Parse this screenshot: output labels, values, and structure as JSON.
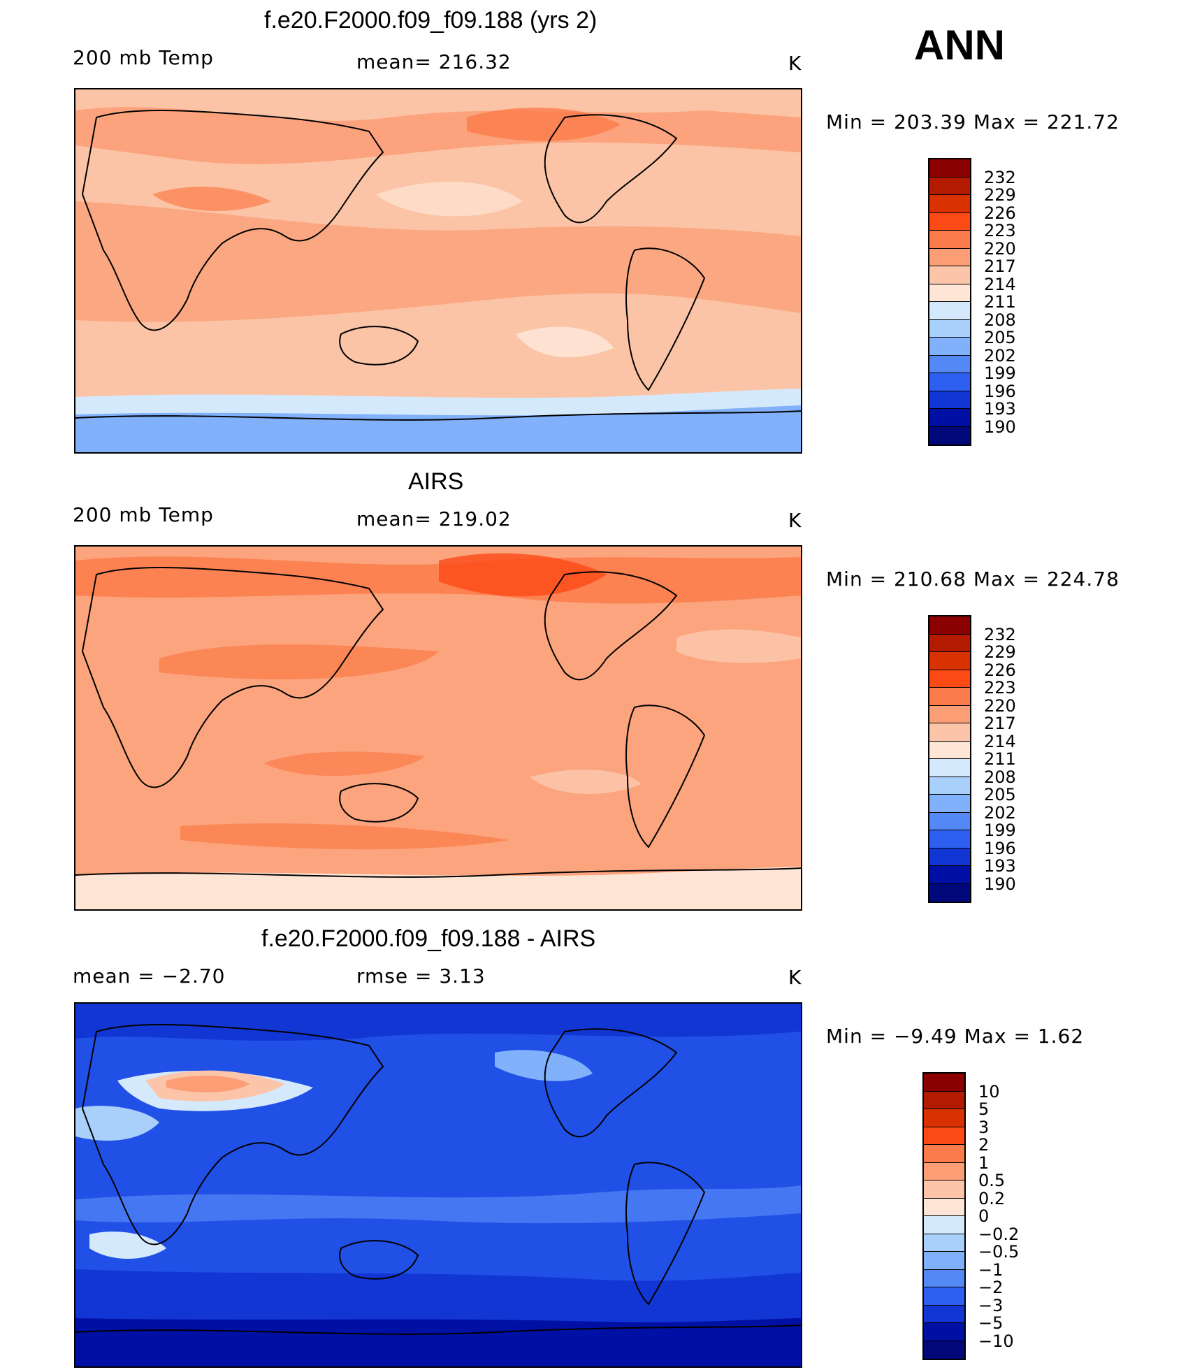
{
  "season": "ANN",
  "panels": [
    {
      "title": "f.e20.F2000.f09_f09.188 (yrs 2)",
      "left_stat": "200 mb Temp",
      "center_stat": "mean=  216.32",
      "units": "K",
      "minmax": "Min  =  203.39  Max  =  221.72",
      "colorbar_labels": [
        "232",
        "229",
        "226",
        "223",
        "220",
        "217",
        "214",
        "211",
        "208",
        "205",
        "202",
        "199",
        "196",
        "193",
        "190"
      ],
      "background_color": "#fbc4a6",
      "colors": [
        "#8b0000",
        "#b31b00",
        "#d93200",
        "#fc4a16",
        "#fb7c4a",
        "#fb9e75",
        "#fcc5aa",
        "#fee5d6",
        "#d5e9fd",
        "#a9d0fb",
        "#80b1fa",
        "#5488f5",
        "#2d5ff0",
        "#1236d3",
        "#0010a4",
        "#00087a"
      ]
    },
    {
      "title": "AIRS",
      "left_stat": "200 mb Temp",
      "center_stat": "mean=  219.02",
      "units": "K",
      "minmax": "Min  =  210.68  Max  =  224.78",
      "colorbar_labels": [
        "232",
        "229",
        "226",
        "223",
        "220",
        "217",
        "214",
        "211",
        "208",
        "205",
        "202",
        "199",
        "196",
        "193",
        "190"
      ],
      "background_color": "#fba47d",
      "colors": [
        "#8b0000",
        "#b31b00",
        "#d93200",
        "#fc4a16",
        "#fb7c4a",
        "#fb9e75",
        "#fcc5aa",
        "#fee5d6",
        "#d5e9fd",
        "#a9d0fb",
        "#80b1fa",
        "#5488f5",
        "#2d5ff0",
        "#1236d3",
        "#0010a4",
        "#00087a"
      ]
    },
    {
      "title": "f.e20.F2000.f09_f09.188 - AIRS",
      "left_stat": "mean  =    −2.70",
      "center_stat": "rmse  =     3.13",
      "units": "K",
      "minmax": "Min  =    −9.49  Max  =     1.62",
      "colorbar_labels": [
        "10",
        "5",
        "3",
        "2",
        "1",
        "0.5",
        "0.2",
        "0",
        "−0.2",
        "−0.5",
        "−1",
        "−2",
        "−3",
        "−5",
        "−10"
      ],
      "background_color": "#2050e6",
      "colors": [
        "#8b0000",
        "#b31b00",
        "#d93200",
        "#fc4a16",
        "#fb7c4a",
        "#fb9e75",
        "#fcc5aa",
        "#fee5d6",
        "#d5e9fd",
        "#a9d0fb",
        "#80b1fa",
        "#5488f5",
        "#2d5ff0",
        "#1236d3",
        "#0010a4",
        "#00087a"
      ]
    }
  ]
}
